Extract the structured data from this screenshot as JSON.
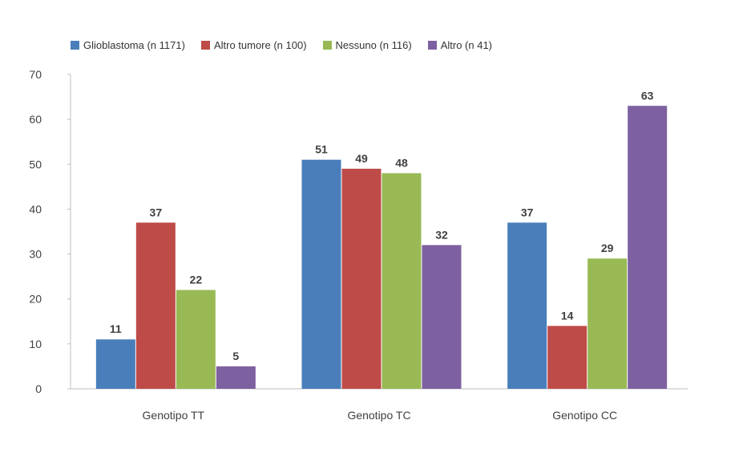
{
  "chart_data": {
    "type": "bar",
    "title": "",
    "xlabel": "",
    "ylabel": "",
    "categories": [
      "Genotipo TT",
      "Genotipo TC",
      "Genotipo CC"
    ],
    "series": [
      {
        "name": "Glioblastoma (n 1171)",
        "values": [
          11,
          51,
          37
        ],
        "color": "#4a7ebb"
      },
      {
        "name": "Altro tumore (n 100)",
        "values": [
          37,
          49,
          14
        ],
        "color": "#be4b48"
      },
      {
        "name": "Nessuno (n 116)",
        "values": [
          22,
          48,
          29
        ],
        "color": "#98b954"
      },
      {
        "name": "Altro (n 41)",
        "values": [
          5,
          32,
          63
        ],
        "color": "#7d60a0"
      }
    ],
    "ylim": [
      0,
      70
    ],
    "yticks": [
      0,
      10,
      20,
      30,
      40,
      50,
      60,
      70
    ],
    "legend_position": "top",
    "grid": false
  }
}
